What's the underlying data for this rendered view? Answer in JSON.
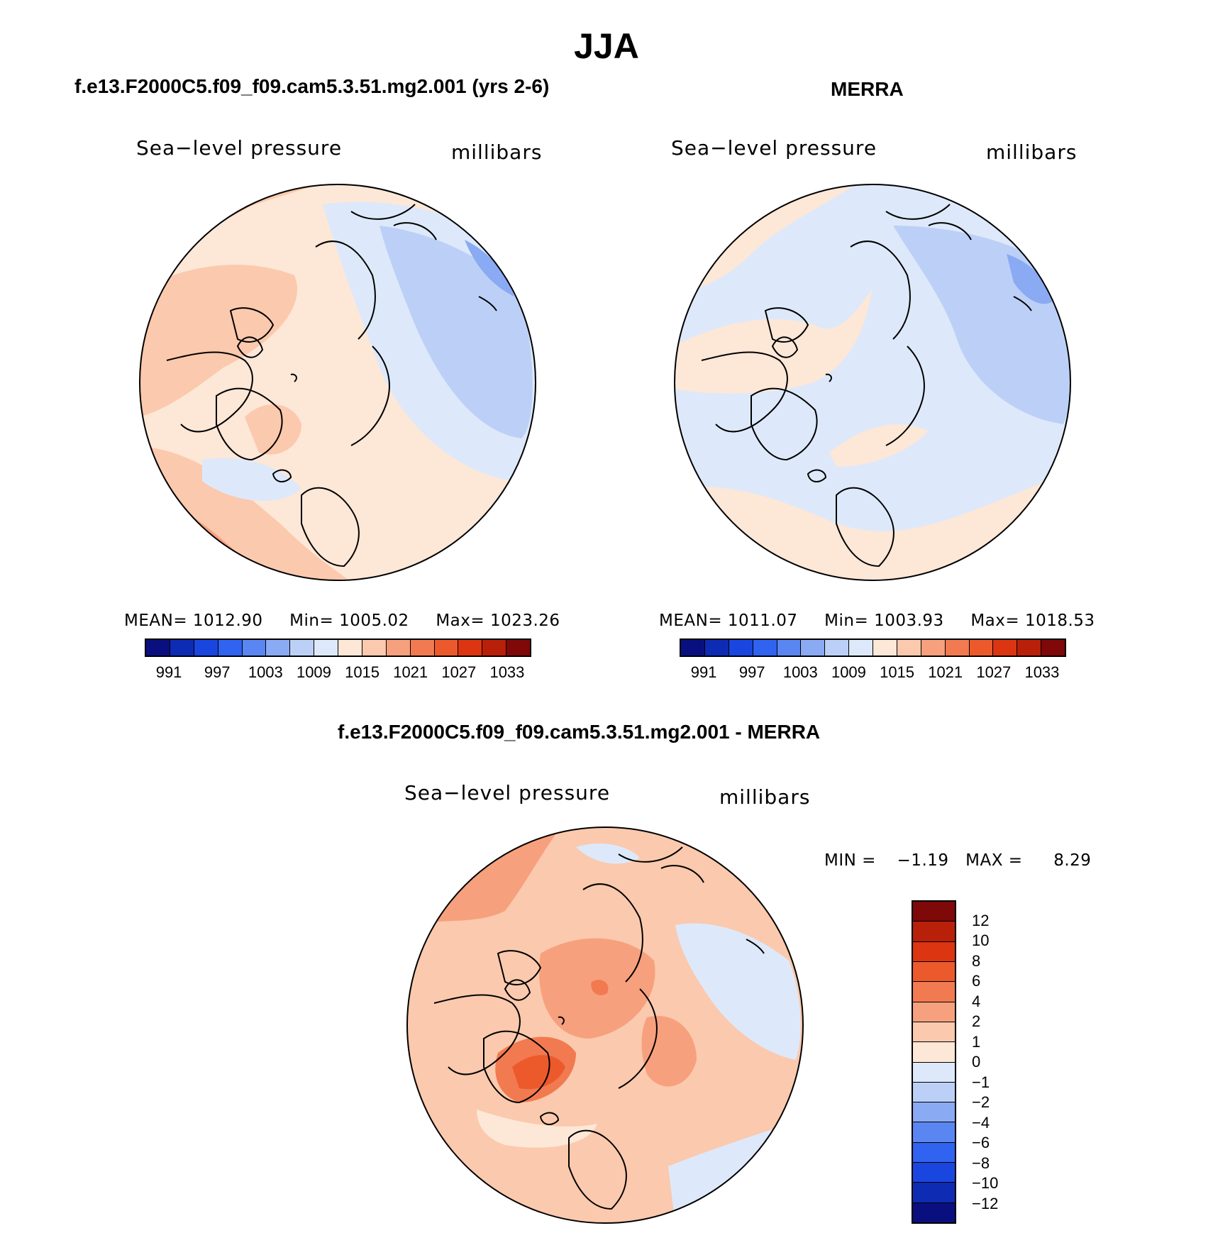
{
  "title": "JJA",
  "palette_abs": [
    "#0a0f7f",
    "#0e2bb3",
    "#1a46e0",
    "#2f63f0",
    "#5a86f2",
    "#8aaaf4",
    "#bcd0f7",
    "#dde9fa",
    "#fde7d7",
    "#fbc9ad",
    "#f7a07d",
    "#f27a50",
    "#ec5a2c",
    "#db3512",
    "#b8200a",
    "#7f0808"
  ],
  "palette_diff": [
    "#7f0808",
    "#b8200a",
    "#db3512",
    "#ec5a2c",
    "#f27a50",
    "#f7a07d",
    "#fbc9ad",
    "#fde7d7",
    "#dde9fa",
    "#bcd0f7",
    "#8aaaf4",
    "#5a86f2",
    "#2f63f0",
    "#1a46e0",
    "#0e2bb3",
    "#0a0f7f"
  ],
  "abs_colorbar_labels": [
    "991",
    "997",
    "1003",
    "1009",
    "1015",
    "1021",
    "1027",
    "1033"
  ],
  "diff_colorbar_labels": [
    "12",
    "10",
    "8",
    "6",
    "4",
    "2",
    "1",
    "0",
    "−1",
    "−2",
    "−4",
    "−6",
    "−8",
    "−10",
    "−12"
  ],
  "panels": {
    "model": {
      "title": "f.e13.F2000C5.f09_f09.cam5.3.51.mg2.001 (yrs 2-6)",
      "variable": "Sea−level pressure",
      "units": "millibars",
      "mean_label": "MEAN=",
      "mean": "1012.90",
      "min_label": "Min=",
      "min": "1005.02",
      "max_label": "Max=",
      "max": "1023.26"
    },
    "obs": {
      "title": "MERRA",
      "variable": "Sea−level pressure",
      "units": "millibars",
      "mean_label": "MEAN=",
      "mean": "1011.07",
      "min_label": "Min=",
      "min": "1003.93",
      "max_label": "Max=",
      "max": "1018.53"
    },
    "diff": {
      "title": "f.e13.F2000C5.f09_f09.cam5.3.51.mg2.001 - MERRA",
      "variable": "Sea−level pressure",
      "units": "millibars",
      "min_label": "MIN =",
      "min": "−1.19",
      "max_label": "MAX =",
      "max": "8.29"
    }
  }
}
